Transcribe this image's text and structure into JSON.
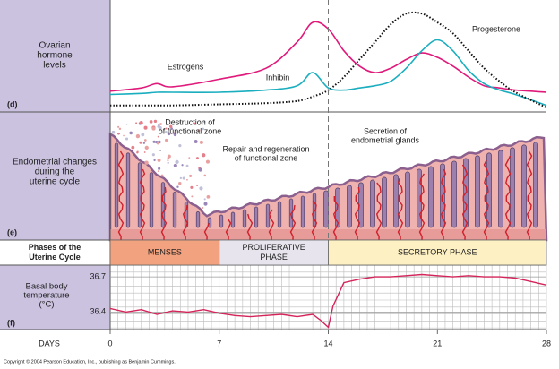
{
  "chart_data": [
    {
      "type": "line",
      "tag": "(d)",
      "ylabel": [
        "Ovarian",
        "hormone",
        "levels"
      ],
      "x": [
        0,
        2,
        3,
        4,
        7,
        10,
        12,
        13,
        14,
        15,
        16,
        17,
        18,
        19,
        20,
        21,
        22,
        23,
        24,
        25,
        26,
        28
      ],
      "xlim": [
        0,
        28
      ],
      "ylim": [
        0,
        100
      ],
      "series": [
        {
          "name": "Estrogens",
          "color": "#e0197a",
          "dash": "solid",
          "values": [
            19,
            22,
            26,
            23,
            30,
            40,
            64,
            82,
            76,
            56,
            42,
            36,
            40,
            48,
            54,
            50,
            42,
            32,
            24,
            22,
            20,
            18
          ]
        },
        {
          "name": "Inhibin",
          "color": "#1aaebf",
          "dash": "solid",
          "values": [
            16,
            17,
            18,
            18,
            18,
            20,
            24,
            36,
            22,
            20,
            22,
            24,
            28,
            40,
            56,
            66,
            56,
            38,
            26,
            20,
            16,
            6
          ]
        },
        {
          "name": "Progesterone",
          "color": "#111111",
          "dash": "dotted",
          "values": [
            6,
            6,
            6,
            6,
            7,
            8,
            10,
            14,
            20,
            32,
            48,
            64,
            80,
            90,
            90,
            82,
            72,
            56,
            40,
            28,
            18,
            4
          ]
        }
      ]
    },
    {
      "type": "line",
      "tag": "(f)",
      "ylabel": [
        "Basal body",
        "temperature",
        "(°C)"
      ],
      "xlabel": "DAYS",
      "color": "#d4245a",
      "x": [
        0,
        1,
        2,
        3,
        4,
        5,
        6,
        7,
        8,
        9,
        10,
        11,
        12,
        13,
        13.5,
        14,
        14.3,
        15,
        16,
        17,
        18,
        19,
        20,
        21,
        22,
        23,
        24,
        25,
        26,
        27,
        28
      ],
      "values": [
        36.43,
        36.4,
        36.42,
        36.38,
        36.41,
        36.4,
        36.42,
        36.39,
        36.37,
        36.36,
        36.37,
        36.38,
        36.36,
        36.38,
        36.33,
        36.27,
        36.45,
        36.65,
        36.68,
        36.7,
        36.7,
        36.71,
        36.72,
        36.71,
        36.7,
        36.71,
        36.7,
        36.7,
        36.69,
        36.66,
        36.63
      ],
      "xlim": [
        0,
        28
      ],
      "xticks": [
        0,
        7,
        14,
        21,
        28
      ],
      "ylim": [
        36.25,
        36.8
      ],
      "yticks": [
        36.4,
        36.7
      ],
      "grid": true
    }
  ],
  "endometrium": {
    "tag": "(e)",
    "label": [
      "Endometrial changes",
      "during the",
      "uterine cycle"
    ],
    "annotations": [
      [
        "Destruction of",
        "of functional zone"
      ],
      [
        "Repair and regeneration",
        "of functional zone"
      ],
      [
        "Secretion of",
        "endometrial glands"
      ]
    ]
  },
  "phases": {
    "label": [
      "Phases of the",
      "Uterine Cycle"
    ],
    "items": [
      {
        "name": [
          "MENSES"
        ],
        "start": 0,
        "end": 7,
        "color": "#f2a27e"
      },
      {
        "name": [
          "PROLIFERATIVE",
          "PHASE"
        ],
        "start": 7,
        "end": 14,
        "color": "#e7e4ee"
      },
      {
        "name": [
          "SECRETORY PHASE"
        ],
        "start": 14,
        "end": 28,
        "color": "#fdf0c2"
      }
    ]
  },
  "copyright": "Copyright © 2004 Pearson Education, Inc., publishing as Benjamin Cummings."
}
